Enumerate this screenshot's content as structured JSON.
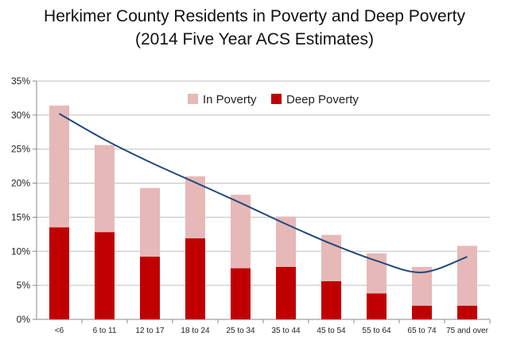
{
  "chart_data": {
    "type": "bar",
    "title": "Herkimer County Residents in Poverty and Deep Poverty",
    "subtitle": "(2014 Five Year ACS Estimates)",
    "categories": [
      "<6",
      "6 to 11",
      "12 to 17",
      "18 to 24",
      "25 to 34",
      "35 to 44",
      "45 to 54",
      "55 to 64",
      "65 to 74",
      "75 and over"
    ],
    "series": [
      {
        "name": "In Poverty",
        "values": [
          31.4,
          25.6,
          19.3,
          21.0,
          18.3,
          15.1,
          12.4,
          9.7,
          7.7,
          10.8
        ],
        "color": "#e6b9b8"
      },
      {
        "name": "Deep Poverty",
        "values": [
          13.5,
          12.8,
          9.2,
          11.9,
          7.5,
          7.7,
          5.6,
          3.8,
          2.0,
          2.0
        ],
        "color": "#c00000"
      }
    ],
    "trendline": {
      "of_series": "In Poverty",
      "type": "polynomial",
      "color": "#1f497d",
      "values": [
        30.2,
        26.4,
        23.1,
        20.1,
        17.1,
        14.0,
        11.1,
        8.6,
        6.9,
        9.2
      ]
    },
    "ylim": [
      0,
      35
    ],
    "yticks": [
      "0%",
      "5%",
      "10%",
      "15%",
      "20%",
      "25%",
      "30%",
      "35%"
    ],
    "grid": true,
    "legend": {
      "placement": "top-center",
      "entries": [
        "In Poverty",
        "Deep Poverty"
      ]
    },
    "stacking": "overlay"
  }
}
